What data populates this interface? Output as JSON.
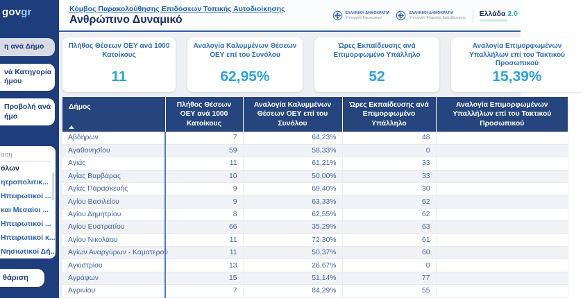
{
  "brand": {
    "logo_gov": "gov",
    "logo_gr": "gr"
  },
  "sidebar": {
    "nav_buttons": [
      {
        "lines": [
          "η ανά Δήμο"
        ],
        "selected": true
      },
      {
        "lines": [
          "νά Κατηγορία",
          "ήμου"
        ],
        "selected": false
      },
      {
        "lines": [
          "Προβολή ανά",
          "ήμο"
        ],
        "selected": false
      }
    ],
    "filter": {
      "search_placeholder": "αση",
      "select_all": "όλων",
      "items": [
        "ητροπολιτικ...",
        "Ηπειρωτικοί ...",
        "και Μεσαίοι ...",
        "Ηπειρωτικοί ...",
        "Ηπειρωτικοί κ...",
        "Νησιωτικοί Δή..."
      ],
      "clear_button": "θάριση"
    }
  },
  "header": {
    "breadcrumb": "Κόμβος Παρακολούθησης Επιδόσεων Τοπικής Αυτοδιοίκησης",
    "title": "Ανθρώπινο Δυναμικό",
    "ministries": [
      {
        "line1": "ΕΛΛΗΝΙΚΗ ΔΗΜΟΚΡΑΤΙΑ",
        "line2": "Υπουργείο Εσωτερικών"
      },
      {
        "line1": "ΕΛΛΗΝΙΚΗ ΔΗΜΟΚΡΑΤΙΑ",
        "line2": "Υπουργείο Ψηφιακής Διακυβέρνησης"
      }
    ],
    "greece20": {
      "name": "Ελλάδα ",
      "v2": "2",
      "vdot0": ".0"
    }
  },
  "kpis": [
    {
      "title": "Πλήθος Θέσεων ΟΕΥ ανά 1000 Κατοίκους",
      "value": "11"
    },
    {
      "title": "Αναλογία Καλυμμένων Θέσεων ΟΕΥ επί του Συνόλου",
      "value": "62,95%"
    },
    {
      "title": "Ώρες Εκπαίδευσης ανά Επιμορφωμένο Υπάλληλο",
      "value": "52"
    },
    {
      "title": "Αναλογία Επιμορφωμένων Υπαλλήλων επί του Τακτικού Προσωπικού",
      "value": "15,39%"
    }
  ],
  "table": {
    "columns": [
      "Δήμος",
      "Πλήθος Θέσεων ΟΕΥ ανά 1000 Κατοίκους",
      "Αναλογία Καλυμμένων Θέσεων ΟΕΥ επί του Συνόλου",
      "Ώρες Εκπαίδευσης ανά Επιμορφωμένο Υπάλληλο",
      "Αναλογία Επιμορφωμένων Υπαλλήλων επί του Τακτικού Προσωπικού"
    ],
    "rows": [
      [
        "Αβδήρων",
        "7",
        "64,23%",
        "48",
        ""
      ],
      [
        "Αγαθονησίου",
        "59",
        "58,33%",
        "0",
        ""
      ],
      [
        "Αγιάς",
        "11",
        "61,21%",
        "33",
        ""
      ],
      [
        "Αγίας Βαρβάρας",
        "10",
        "50,00%",
        "33",
        ""
      ],
      [
        "Αγίας Παρασκευής",
        "9",
        "69,40%",
        "30",
        ""
      ],
      [
        "Αγίου Βασιλείου",
        "9",
        "63,33%",
        "62",
        ""
      ],
      [
        "Αγίου Δημητρίου",
        "8",
        "62,55%",
        "62",
        ""
      ],
      [
        "Αγίου Ευστρατίου",
        "66",
        "35,29%",
        "63",
        ""
      ],
      [
        "Αγίου Νικολάου",
        "11",
        "72,30%",
        "61",
        ""
      ],
      [
        "Αγίων Αναργύρων - Καματερού",
        "11",
        "50,37%",
        "60",
        ""
      ],
      [
        "Αγκιστρίου",
        "13",
        "26,67%",
        "0",
        ""
      ],
      [
        "Αγράφων",
        "15",
        "51,14%",
        "77",
        ""
      ],
      [
        "Αγρινίου",
        "7",
        "84,29%",
        "55",
        ""
      ]
    ]
  },
  "colors": {
    "sidebar_navy": "#1e3d7c",
    "table_header_navy": "#26457e",
    "accent_light_blue": "#2ba3de",
    "link_blue": "#2160b8",
    "divider_blue": "#2e5ca9",
    "column_separator_blue": "#4d79c7"
  }
}
